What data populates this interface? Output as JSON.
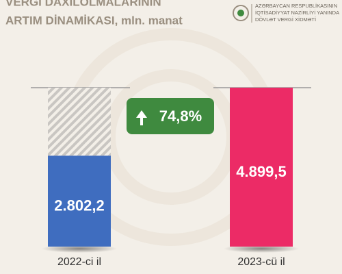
{
  "chart_data": {
    "type": "bar",
    "title": "VERGİ DAXİLOLMALARININ",
    "subtitle": "ARTIM DİNAMİKASI, mln. manat",
    "organization": [
      "AZƏRBAYCAN RESPUBLİKASININ",
      "İQTİSADİYYAT NAZİRLİYİ YANINDA",
      "DÖVLƏT VERGİ XİDMƏTİ"
    ],
    "categories": [
      "2022-ci il",
      "2023-cü il"
    ],
    "values": [
      2802.2,
      4899.5
    ],
    "value_labels": [
      "2.802,2",
      "4.899,5"
    ],
    "colors": [
      "#3f6dbf",
      "#ec2b66"
    ],
    "annotation": "74,8%",
    "annotation_color": "#3f8a3f"
  }
}
